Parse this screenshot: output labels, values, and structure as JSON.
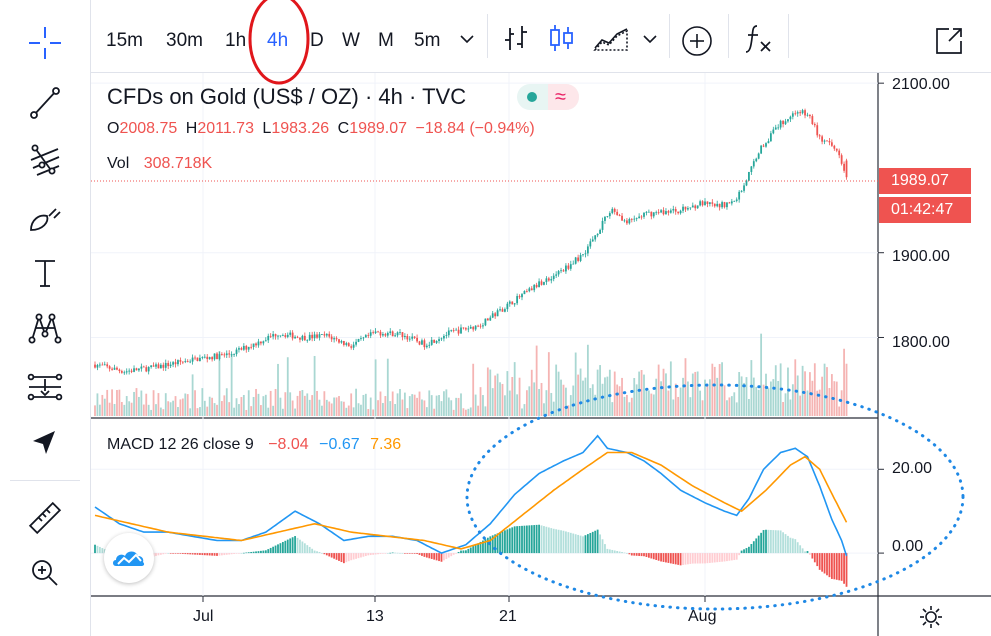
{
  "toolbar": {
    "timeframes": [
      {
        "label": "15m",
        "active": false
      },
      {
        "label": "30m",
        "active": false
      },
      {
        "label": "1h",
        "active": false
      },
      {
        "label": "4h",
        "active": true
      },
      {
        "label": "D",
        "active": false
      },
      {
        "label": "W",
        "active": false
      },
      {
        "label": "M",
        "active": false
      },
      {
        "label": "5m",
        "active": false
      }
    ]
  },
  "legend": {
    "title": "CFDs on Gold (US$ / OZ)",
    "interval": "4h",
    "source": "TVC",
    "open_label": "O",
    "open": "2008.75",
    "high_label": "H",
    "high": "2011.73",
    "low_label": "L",
    "low": "1983.26",
    "close_label": "C",
    "close": "1989.07",
    "change": "−18.84 (−0.94%)",
    "vol_label": "Vol",
    "vol": "308.718K",
    "macd_label": "MACD 12 26 close 9",
    "macd_hist": "−8.04",
    "macd_line": "−0.67",
    "macd_signal": "7.36"
  },
  "price_labels": {
    "last_price": "1989.07",
    "countdown": "01:42:47"
  },
  "colors": {
    "up": "#26a69a",
    "down": "#ef5350",
    "vol_up": "#a9d7d2",
    "vol_down": "#f5b4b3",
    "macd_line": "#2196f3",
    "signal_line": "#ff9800",
    "accent": "#2962ff",
    "annotation": "#1e88e5",
    "highlight": "#e0161b"
  },
  "chart_data": [
    {
      "type": "candlestick",
      "y_ticks": [
        "2100.00",
        "1900.00",
        "1800.00"
      ],
      "x_ticks": [
        "Jul",
        "13",
        "21",
        "Aug"
      ],
      "ylim": [
        1705,
        2112
      ],
      "last_close": 1989.07,
      "anchors": [
        {
          "i": 0,
          "p": 1768
        },
        {
          "i": 12,
          "p": 1760
        },
        {
          "i": 25,
          "p": 1765
        },
        {
          "i": 40,
          "p": 1774
        },
        {
          "i": 55,
          "p": 1780
        },
        {
          "i": 65,
          "p": 1792
        },
        {
          "i": 75,
          "p": 1805
        },
        {
          "i": 85,
          "p": 1800
        },
        {
          "i": 95,
          "p": 1802
        },
        {
          "i": 105,
          "p": 1790
        },
        {
          "i": 115,
          "p": 1806
        },
        {
          "i": 125,
          "p": 1804
        },
        {
          "i": 135,
          "p": 1792
        },
        {
          "i": 145,
          "p": 1805
        },
        {
          "i": 158,
          "p": 1815
        },
        {
          "i": 170,
          "p": 1840
        },
        {
          "i": 182,
          "p": 1863
        },
        {
          "i": 192,
          "p": 1880
        },
        {
          "i": 200,
          "p": 1898
        },
        {
          "i": 207,
          "p": 1930
        },
        {
          "i": 212,
          "p": 1952
        },
        {
          "i": 218,
          "p": 1935
        },
        {
          "i": 225,
          "p": 1945
        },
        {
          "i": 232,
          "p": 1948
        },
        {
          "i": 240,
          "p": 1950
        },
        {
          "i": 248,
          "p": 1958
        },
        {
          "i": 255,
          "p": 1955
        },
        {
          "i": 262,
          "p": 1960
        },
        {
          "i": 266,
          "p": 1980
        },
        {
          "i": 272,
          "p": 2020
        },
        {
          "i": 280,
          "p": 2050
        },
        {
          "i": 288,
          "p": 2068
        },
        {
          "i": 293,
          "p": 2060
        },
        {
          "i": 297,
          "p": 2035
        },
        {
          "i": 302,
          "p": 2025
        },
        {
          "i": 305,
          "p": 2018
        },
        {
          "i": 308,
          "p": 1989
        }
      ]
    },
    {
      "type": "bar",
      "name": "Vol",
      "last_value": "308.718K"
    },
    {
      "type": "line",
      "name": "MACD 12 26 close 9",
      "y_ticks": [
        "20.00",
        "0.00"
      ],
      "ylim": [
        -10,
        32
      ],
      "macd_anchors": [
        {
          "i": 0,
          "v": 11
        },
        {
          "i": 10,
          "v": 7
        },
        {
          "i": 20,
          "v": 5
        },
        {
          "i": 30,
          "v": 5
        },
        {
          "i": 40,
          "v": 4
        },
        {
          "i": 50,
          "v": 3
        },
        {
          "i": 60,
          "v": 3
        },
        {
          "i": 70,
          "v": 5
        },
        {
          "i": 82,
          "v": 10
        },
        {
          "i": 92,
          "v": 7
        },
        {
          "i": 102,
          "v": 3
        },
        {
          "i": 112,
          "v": 4
        },
        {
          "i": 122,
          "v": 4
        },
        {
          "i": 132,
          "v": 3
        },
        {
          "i": 142,
          "v": 0
        },
        {
          "i": 152,
          "v": 2
        },
        {
          "i": 162,
          "v": 7
        },
        {
          "i": 172,
          "v": 14
        },
        {
          "i": 182,
          "v": 19
        },
        {
          "i": 192,
          "v": 22
        },
        {
          "i": 200,
          "v": 24
        },
        {
          "i": 206,
          "v": 28
        },
        {
          "i": 210,
          "v": 25
        },
        {
          "i": 218,
          "v": 24
        },
        {
          "i": 225,
          "v": 22
        },
        {
          "i": 232,
          "v": 19
        },
        {
          "i": 240,
          "v": 15
        },
        {
          "i": 250,
          "v": 12
        },
        {
          "i": 258,
          "v": 10
        },
        {
          "i": 263,
          "v": 9
        },
        {
          "i": 268,
          "v": 13
        },
        {
          "i": 274,
          "v": 20
        },
        {
          "i": 281,
          "v": 24
        },
        {
          "i": 287,
          "v": 25
        },
        {
          "i": 292,
          "v": 23
        },
        {
          "i": 297,
          "v": 16
        },
        {
          "i": 302,
          "v": 8
        },
        {
          "i": 306,
          "v": 3
        },
        {
          "i": 308,
          "v": -0.67
        }
      ],
      "signal_anchors": [
        {
          "i": 0,
          "v": 9
        },
        {
          "i": 15,
          "v": 7
        },
        {
          "i": 30,
          "v": 5
        },
        {
          "i": 45,
          "v": 4
        },
        {
          "i": 60,
          "v": 3
        },
        {
          "i": 75,
          "v": 5
        },
        {
          "i": 90,
          "v": 7
        },
        {
          "i": 105,
          "v": 5
        },
        {
          "i": 120,
          "v": 4
        },
        {
          "i": 135,
          "v": 3
        },
        {
          "i": 150,
          "v": 1
        },
        {
          "i": 162,
          "v": 3
        },
        {
          "i": 175,
          "v": 9
        },
        {
          "i": 188,
          "v": 15
        },
        {
          "i": 200,
          "v": 20
        },
        {
          "i": 210,
          "v": 24
        },
        {
          "i": 220,
          "v": 24
        },
        {
          "i": 232,
          "v": 21
        },
        {
          "i": 245,
          "v": 16
        },
        {
          "i": 258,
          "v": 12
        },
        {
          "i": 265,
          "v": 10
        },
        {
          "i": 275,
          "v": 15
        },
        {
          "i": 285,
          "v": 21
        },
        {
          "i": 291,
          "v": 23
        },
        {
          "i": 297,
          "v": 20
        },
        {
          "i": 303,
          "v": 13
        },
        {
          "i": 308,
          "v": 7.36
        }
      ]
    }
  ]
}
